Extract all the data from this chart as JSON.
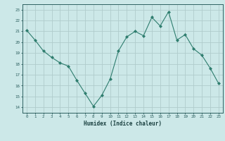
{
  "x": [
    0,
    1,
    2,
    3,
    4,
    5,
    6,
    7,
    8,
    9,
    10,
    11,
    12,
    13,
    14,
    15,
    16,
    17,
    18,
    19,
    20,
    21,
    22,
    23
  ],
  "y": [
    21.1,
    20.2,
    19.2,
    18.6,
    18.1,
    17.8,
    16.5,
    15.3,
    14.1,
    15.1,
    16.6,
    19.2,
    20.5,
    21.0,
    20.6,
    22.3,
    21.5,
    22.8,
    20.2,
    20.7,
    19.4,
    18.8,
    17.6,
    16.2
  ],
  "line_color": "#2e7d6e",
  "marker": "D",
  "marker_size": 2.0,
  "bg_color": "#cce8e8",
  "grid_color": "#b0cccc",
  "xlabel": "Humidex (Indice chaleur)",
  "ylabel_ticks": [
    14,
    15,
    16,
    17,
    18,
    19,
    20,
    21,
    22,
    23
  ],
  "xlim": [
    -0.5,
    23.5
  ],
  "ylim": [
    13.5,
    23.5
  ],
  "tick_color": "#2e6060",
  "label_color": "#1a4040",
  "spine_color": "#2e6060"
}
